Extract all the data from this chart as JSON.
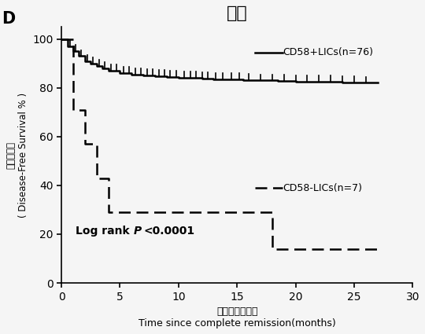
{
  "title": "化疗",
  "panel_label": "D",
  "xlabel_cn": "随访时间（月）",
  "xlabel_en": "Time since complete remission(months)",
  "ylabel_line1": "无病生存率",
  "ylabel_line2": "( Disease-Free Survival % )",
  "xlim": [
    0,
    30
  ],
  "ylim": [
    0,
    105
  ],
  "xticks": [
    0,
    5,
    10,
    15,
    20,
    25,
    30
  ],
  "yticks": [
    0,
    20,
    40,
    60,
    80,
    100
  ],
  "solid_label": "CD58+LICs(n=76)",
  "dashed_label": "CD58-LICs(n=7)",
  "line_color": "#000000",
  "background_color": "#f0f0f0",
  "solid_x": [
    0,
    0.5,
    0.5,
    1.0,
    1.0,
    1.5,
    1.5,
    2.0,
    2.0,
    2.5,
    2.5,
    3.0,
    3.0,
    3.5,
    3.5,
    4.0,
    4.0,
    5.0,
    5.0,
    6.0,
    6.0,
    7.0,
    7.0,
    8.0,
    8.0,
    9.0,
    9.0,
    10.0,
    10.0,
    11.0,
    11.0,
    12.0,
    12.0,
    13.0,
    13.0,
    14.0,
    14.0,
    15.5,
    15.5,
    17.0,
    17.0,
    18.5,
    18.5,
    20.0,
    20.0,
    22.0,
    22.0,
    24.0,
    24.0,
    25.5,
    25.5,
    27.0
  ],
  "solid_y": [
    100,
    100,
    97,
    97,
    95,
    95,
    93,
    93,
    91,
    91,
    90,
    90,
    89,
    89,
    88,
    88,
    87,
    87,
    86,
    86,
    85.5,
    85.5,
    85,
    85,
    84.8,
    84.8,
    84.5,
    84.5,
    84.2,
    84.2,
    84,
    84,
    83.8,
    83.8,
    83.6,
    83.6,
    83.4,
    83.4,
    83.2,
    83.2,
    83.0,
    83.0,
    82.8,
    82.8,
    82.6,
    82.6,
    82.4,
    82.4,
    82.2,
    82.2,
    82.0,
    82.0
  ],
  "censoring_x": [
    0.7,
    1.2,
    1.7,
    2.2,
    2.7,
    3.2,
    3.7,
    4.2,
    4.7,
    5.3,
    5.8,
    6.3,
    6.8,
    7.3,
    7.8,
    8.3,
    8.8,
    9.3,
    9.8,
    10.5,
    11.0,
    11.5,
    12.0,
    12.5,
    13.2,
    13.8,
    14.5,
    15.2,
    16.0,
    17.0,
    18.0,
    19.0,
    20.0,
    21.0,
    22.0,
    23.0,
    24.0,
    25.0,
    26.0
  ],
  "dashed_x": [
    0,
    1,
    1,
    2,
    2,
    3,
    3,
    4,
    4,
    6,
    6,
    18,
    18,
    19,
    19,
    27
  ],
  "dashed_y": [
    100,
    100,
    71,
    71,
    57,
    57,
    43,
    43,
    29,
    29,
    29,
    29,
    14,
    14,
    14,
    14
  ]
}
